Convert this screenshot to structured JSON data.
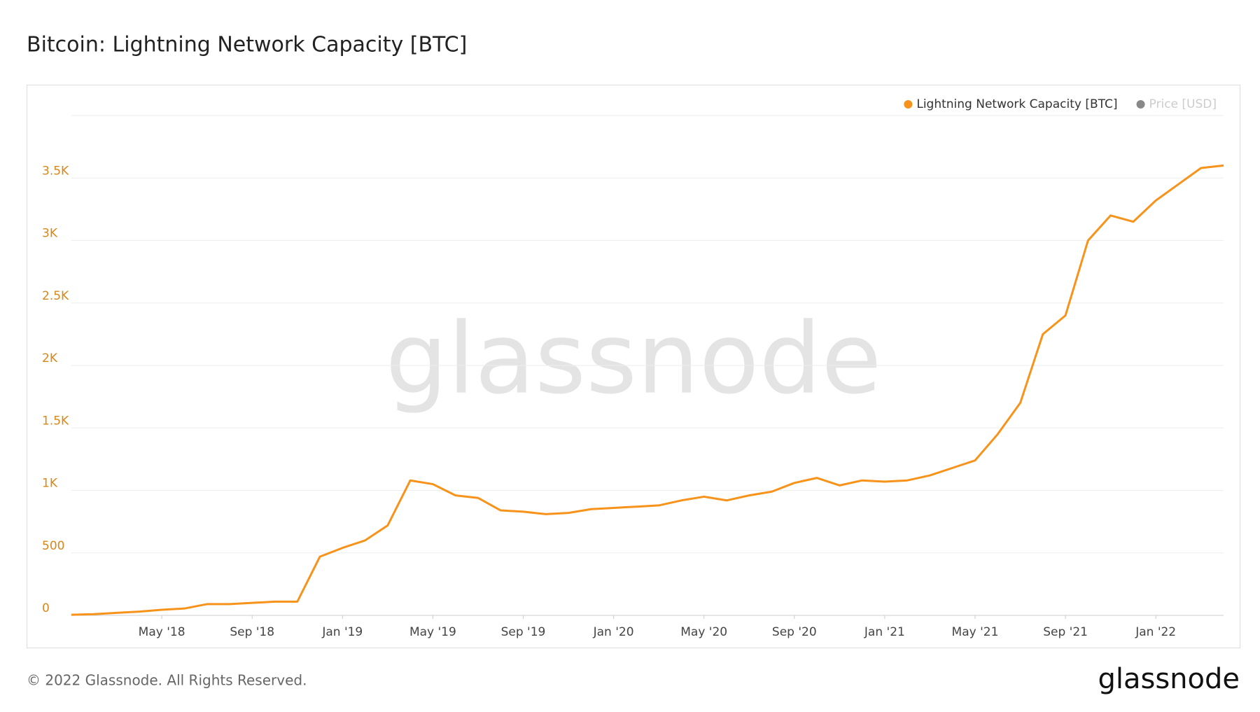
{
  "chart_data": {
    "type": "line",
    "title": "Bitcoin: Lightning Network Capacity [BTC]",
    "watermark": "glassnode",
    "copyright": "© 2022 Glassnode. All Rights Reserved.",
    "logo": "glassnode",
    "x": [
      "2018-01",
      "2018-02",
      "2018-03",
      "2018-04",
      "2018-05",
      "2018-06",
      "2018-07",
      "2018-08",
      "2018-09",
      "2018-10",
      "2018-11",
      "2018-12",
      "2019-01",
      "2019-02",
      "2019-03",
      "2019-04",
      "2019-05",
      "2019-06",
      "2019-07",
      "2019-08",
      "2019-09",
      "2019-10",
      "2019-11",
      "2019-12",
      "2020-01",
      "2020-02",
      "2020-03",
      "2020-04",
      "2020-05",
      "2020-06",
      "2020-07",
      "2020-08",
      "2020-09",
      "2020-10",
      "2020-11",
      "2020-12",
      "2021-01",
      "2021-02",
      "2021-03",
      "2021-04",
      "2021-05",
      "2021-06",
      "2021-07",
      "2021-08",
      "2021-09",
      "2021-10",
      "2021-11",
      "2021-12",
      "2022-01",
      "2022-02",
      "2022-03",
      "2022-04"
    ],
    "series": [
      {
        "name": "Lightning Network Capacity [BTC]",
        "color": "#f7931a",
        "values": [
          5,
          10,
          20,
          30,
          45,
          55,
          90,
          90,
          100,
          110,
          110,
          470,
          540,
          600,
          720,
          1080,
          1050,
          960,
          940,
          840,
          830,
          810,
          820,
          850,
          860,
          870,
          880,
          920,
          950,
          920,
          960,
          990,
          1060,
          1100,
          1040,
          1080,
          1070,
          1080,
          1120,
          1180,
          1240,
          1450,
          1700,
          2250,
          2400,
          3000,
          3200,
          3150,
          3320,
          3450,
          3580,
          3600
        ]
      },
      {
        "name": "Price [USD]",
        "color": "#888888",
        "hidden": true,
        "values": [
          null,
          null,
          null,
          null,
          null,
          null,
          null,
          null,
          null,
          null,
          null,
          null,
          null,
          null,
          null,
          null,
          null,
          null,
          null,
          null,
          null,
          null,
          null,
          null,
          null,
          null,
          null,
          null,
          null,
          null,
          null,
          null,
          null,
          null,
          null,
          null,
          null,
          null,
          null,
          null,
          null,
          null,
          null,
          null,
          null,
          null,
          null,
          null,
          null,
          null,
          null,
          null
        ]
      }
    ],
    "xlim": [
      "2018-01",
      "2022-04"
    ],
    "xticks": [
      {
        "value": "2018-05",
        "label": "May '18"
      },
      {
        "value": "2018-09",
        "label": "Sep '18"
      },
      {
        "value": "2019-01",
        "label": "Jan '19"
      },
      {
        "value": "2019-05",
        "label": "May '19"
      },
      {
        "value": "2019-09",
        "label": "Sep '19"
      },
      {
        "value": "2020-01",
        "label": "Jan '20"
      },
      {
        "value": "2020-05",
        "label": "May '20"
      },
      {
        "value": "2020-09",
        "label": "Sep '20"
      },
      {
        "value": "2021-01",
        "label": "Jan '21"
      },
      {
        "value": "2021-05",
        "label": "May '21"
      },
      {
        "value": "2021-09",
        "label": "Sep '21"
      },
      {
        "value": "2022-01",
        "label": "Jan '22"
      }
    ],
    "ylim": [
      0,
      4000
    ],
    "yticks": [
      0,
      500,
      {
        "value": 1000,
        "label": "1K"
      },
      {
        "value": 1500,
        "label": "1.5K"
      },
      {
        "value": 2000,
        "label": "2K"
      },
      {
        "value": 2500,
        "label": "2.5K"
      },
      {
        "value": 3000,
        "label": "3K"
      },
      {
        "value": 3500,
        "label": "3.5K"
      }
    ],
    "grid": true,
    "legend": "top-right"
  }
}
